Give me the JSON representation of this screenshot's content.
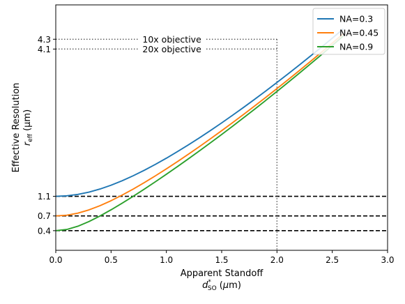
{
  "chart_data": {
    "type": "line",
    "xlabel_main": "Apparent Standoff",
    "xlabel_sym": "d",
    "xlabel_sup": "*",
    "xlabel_sub": "SO",
    "xlabel_unit_open": " (",
    "xlabel_unit_mu": "μ",
    "xlabel_unit_close": "m)",
    "ylabel_main": "Effective Resolution",
    "ylabel_sym": "r",
    "ylabel_sub": "eff",
    "ylabel_unit": " (μm)",
    "xlim": [
      0.0,
      3.0
    ],
    "ylim": [
      0.0,
      5.0
    ],
    "x_ticks": [
      {
        "value": 0.0,
        "label": "0.0"
      },
      {
        "value": 0.5,
        "label": "0.5"
      },
      {
        "value": 1.0,
        "label": "1.0"
      },
      {
        "value": 1.5,
        "label": "1.5"
      },
      {
        "value": 2.0,
        "label": "2.0"
      },
      {
        "value": 2.5,
        "label": "2.5"
      },
      {
        "value": 3.0,
        "label": "3.0"
      }
    ],
    "y_ticks": [
      {
        "value": 0.4,
        "label": "0.4"
      },
      {
        "value": 0.7,
        "label": "0.7"
      },
      {
        "value": 1.1,
        "label": "1.1"
      },
      {
        "value": 4.1,
        "label": "4.1"
      },
      {
        "value": 4.3,
        "label": "4.3"
      }
    ],
    "grid": false,
    "legend_position": "top-right",
    "series": [
      {
        "name": "NA=0.3",
        "color": "#1f77b4",
        "r0": 1.1
      },
      {
        "name": "NA=0.45",
        "color": "#ff7f0e",
        "r0": 0.7
      },
      {
        "name": "NA=0.9",
        "color": "#2ca02c",
        "r0": 0.4
      }
    ],
    "x_samples": [
      0.0,
      0.1,
      0.2,
      0.3,
      0.4,
      0.5,
      0.6,
      0.7,
      0.8,
      0.9,
      1.0,
      1.1,
      1.2,
      1.3,
      1.4,
      1.5,
      1.6,
      1.7,
      1.8,
      1.9,
      2.0,
      2.1,
      2.2,
      2.3,
      2.4,
      2.5,
      2.6
    ],
    "hlines": [
      {
        "y": 1.1,
        "style": "dashed",
        "color": "#000000"
      },
      {
        "y": 0.7,
        "style": "dashed",
        "color": "#000000"
      },
      {
        "y": 0.4,
        "style": "dashed",
        "color": "#000000"
      }
    ],
    "annotations": [
      {
        "text": "10x objective",
        "y": 4.3,
        "x_end": 2.0
      },
      {
        "text": "20x objective",
        "y": 4.1,
        "x_end": 2.0
      }
    ],
    "vline": {
      "x": 2.0,
      "y_top": 4.3,
      "style": "dotted",
      "color": "#555555"
    }
  }
}
